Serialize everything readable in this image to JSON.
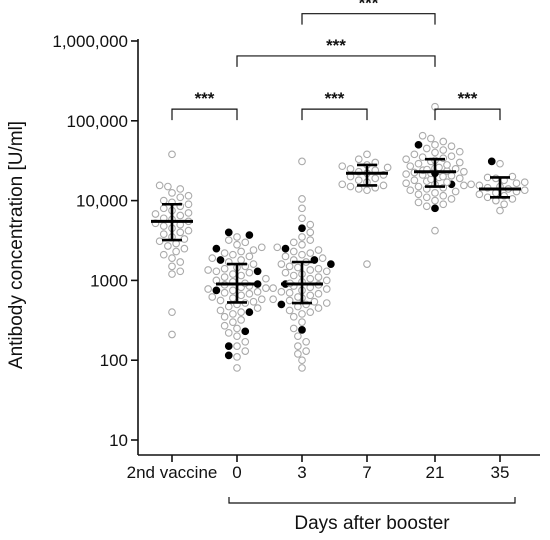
{
  "chart_data": {
    "type": "scatter",
    "title": "",
    "ylabel": "Antibody concentration [U/ml]",
    "xlabel": "",
    "yscale": "log",
    "ylim": [
      10,
      1000000
    ],
    "y_ticks": [
      10,
      100,
      1000,
      10000,
      100000,
      1000000
    ],
    "y_tick_labels": [
      "10",
      "100",
      "1000",
      "10,000",
      "100,000",
      "1,000,000"
    ],
    "categories": [
      "2nd vaccine",
      "0",
      "3",
      "7",
      "21",
      "35"
    ],
    "group_bracket_label": "Days after booster",
    "group_bracket_categories": [
      "0",
      "35"
    ],
    "colors": {
      "open_marker": "#aaaaaa",
      "filled_marker": "#000000",
      "summary": "#000000"
    },
    "legend": "none",
    "grid": false,
    "groups": [
      {
        "category": "2nd vaccine",
        "median": 5500,
        "q1": 3200,
        "q3": 9000,
        "open_points": [
          38000,
          15500,
          15000,
          14000,
          12500,
          11500,
          11000,
          10000,
          9500,
          9000,
          8500,
          8000,
          7500,
          7000,
          6800,
          6500,
          6000,
          5800,
          5500,
          5200,
          5000,
          4800,
          4500,
          4200,
          4000,
          3800,
          3500,
          3300,
          3100,
          2900,
          2700,
          2500,
          2300,
          2100,
          1900,
          1700,
          1500,
          1300,
          1200,
          400,
          210
        ],
        "filled_points": []
      },
      {
        "category": "0",
        "median": 900,
        "q1": 530,
        "q3": 1600,
        "open_points": [
          3500,
          3200,
          3000,
          2800,
          2600,
          2400,
          2300,
          2200,
          2100,
          2000,
          1900,
          1800,
          1700,
          1600,
          1500,
          1450,
          1400,
          1350,
          1300,
          1250,
          1200,
          1150,
          1100,
          1050,
          1000,
          960,
          920,
          880,
          850,
          820,
          800,
          780,
          750,
          720,
          700,
          680,
          650,
          620,
          600,
          580,
          560,
          540,
          520,
          500,
          470,
          450,
          420,
          400,
          380,
          350,
          320,
          300,
          270,
          250,
          220,
          200,
          170,
          150,
          130,
          110,
          80
        ],
        "filled_points": [
          4000,
          3700,
          2500,
          1800,
          1300,
          900,
          750,
          400,
          230,
          150,
          115
        ]
      },
      {
        "category": "3",
        "median": 900,
        "q1": 520,
        "q3": 1700,
        "open_points": [
          31000,
          10500,
          8000,
          6000,
          5000,
          4000,
          3500,
          3200,
          3000,
          2800,
          2600,
          2400,
          2300,
          2200,
          2100,
          2000,
          1900,
          1800,
          1700,
          1600,
          1500,
          1450,
          1400,
          1350,
          1300,
          1250,
          1200,
          1150,
          1100,
          1050,
          1000,
          960,
          920,
          880,
          850,
          820,
          800,
          780,
          750,
          720,
          700,
          680,
          650,
          620,
          600,
          580,
          560,
          540,
          520,
          500,
          470,
          450,
          420,
          400,
          380,
          350,
          300,
          250,
          200,
          170,
          150,
          130,
          120,
          100,
          80
        ],
        "filled_points": [
          4500,
          2500,
          1800,
          1600,
          900,
          500,
          240
        ]
      },
      {
        "category": "7",
        "median": 22000,
        "q1": 15500,
        "q3": 28000,
        "open_points": [
          38000,
          33000,
          30000,
          28000,
          27000,
          26000,
          25000,
          24000,
          23000,
          22000,
          21000,
          20000,
          19000,
          18000,
          17000,
          16000,
          15500,
          15000,
          14500,
          14000,
          13500,
          1600
        ],
        "filled_points": []
      },
      {
        "category": "21",
        "median": 23000,
        "q1": 15000,
        "q3": 33000,
        "open_points": [
          150000,
          65000,
          60000,
          55000,
          50000,
          48000,
          45000,
          43000,
          41000,
          40000,
          38000,
          36000,
          35000,
          34000,
          33000,
          32000,
          31000,
          30000,
          29000,
          28000,
          27000,
          26000,
          25500,
          25000,
          24500,
          24000,
          23500,
          23000,
          22500,
          22000,
          21500,
          21000,
          20500,
          20000,
          19500,
          19000,
          18500,
          18000,
          17500,
          17000,
          16500,
          16000,
          15500,
          15000,
          14500,
          14000,
          13500,
          13000,
          12500,
          12000,
          11500,
          11000,
          10500,
          10000,
          9500,
          9000,
          8500,
          4200
        ],
        "filled_points": [
          50000,
          22000,
          16000,
          8000
        ]
      },
      {
        "category": "35",
        "median": 14000,
        "q1": 11000,
        "q3": 19500,
        "open_points": [
          29000,
          20000,
          19500,
          19000,
          18000,
          17000,
          16500,
          16000,
          15500,
          15000,
          14500,
          14000,
          13500,
          13000,
          12500,
          12000,
          11500,
          11000,
          10500,
          10000,
          9000,
          7500
        ],
        "filled_points": [
          31000
        ]
      }
    ],
    "annotations": [
      {
        "text": "***",
        "from": "2nd vaccine",
        "to": "0",
        "y": 140000
      },
      {
        "text": "***",
        "from": "3",
        "to": "7",
        "y": 140000
      },
      {
        "text": "***",
        "from": "0",
        "to": "21",
        "y": 650000
      },
      {
        "text": "***",
        "from": "3",
        "to": "21",
        "y": 2200000
      },
      {
        "text": "***",
        "from": "21",
        "to": "35",
        "y": 140000
      }
    ]
  }
}
